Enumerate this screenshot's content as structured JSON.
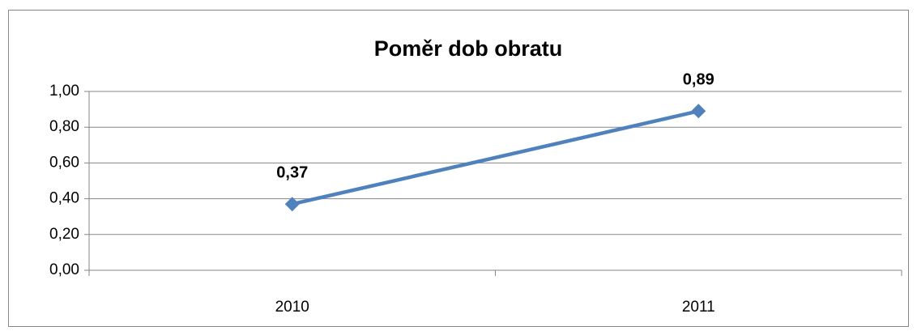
{
  "chart_data": {
    "type": "line",
    "title": "Poměr dob obratu",
    "categories": [
      "2010",
      "2011"
    ],
    "series": [
      {
        "name": "Poměr dob obratu",
        "color": "#4f81bd",
        "values": [
          0.37,
          0.89
        ],
        "value_labels": [
          "0,37",
          "0,89"
        ]
      }
    ],
    "ylim": [
      0,
      1
    ],
    "yticks": [
      {
        "value": 0,
        "label": "0,00"
      },
      {
        "value": 0.2,
        "label": "0,20"
      },
      {
        "value": 0.4,
        "label": "0,40"
      },
      {
        "value": 0.6,
        "label": "0,60"
      },
      {
        "value": 0.8,
        "label": "0,80"
      },
      {
        "value": 1,
        "label": "1,00"
      }
    ],
    "grid": true,
    "legend": false
  }
}
